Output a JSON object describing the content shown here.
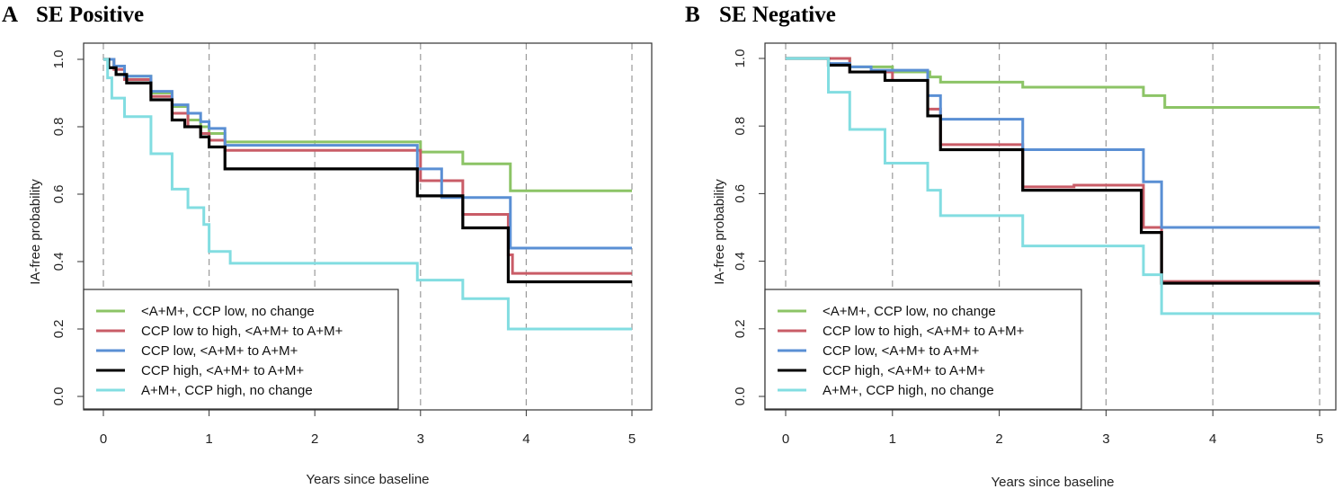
{
  "chart_data": [
    {
      "type": "line",
      "step": true,
      "panel_label": "A",
      "title": "SE Positive",
      "xlabel": "Years since baseline",
      "ylabel": "IA-free probability",
      "xlim": [
        0,
        5
      ],
      "ylim": [
        0,
        1
      ],
      "xticks": [
        "0",
        "1",
        "2",
        "3",
        "4",
        "5"
      ],
      "yticks": [
        "0.0",
        "0.2",
        "0.4",
        "0.6",
        "0.8",
        "1.0"
      ],
      "vlines": [
        0,
        1,
        2,
        3,
        4,
        5
      ],
      "legend_position": "bottom-left",
      "series": [
        {
          "name": "<A+M+, CCP low, no change",
          "color": "#8cc466",
          "x": [
            0,
            0.1,
            0.2,
            0.45,
            0.65,
            0.8,
            0.92,
            1.0,
            1.15,
            3.0,
            3.4,
            3.85,
            5.0
          ],
          "y": [
            1.0,
            0.98,
            0.95,
            0.9,
            0.86,
            0.82,
            0.8,
            0.78,
            0.755,
            0.725,
            0.69,
            0.61,
            0.61
          ]
        },
        {
          "name": "CCP low to high, <A+M+ to A+M+",
          "color": "#c95c67",
          "x": [
            0,
            0.1,
            0.2,
            0.45,
            0.65,
            0.8,
            0.92,
            1.0,
            1.15,
            3.0,
            3.4,
            3.83,
            3.87,
            5.0
          ],
          "y": [
            1.0,
            0.97,
            0.94,
            0.89,
            0.84,
            0.8,
            0.78,
            0.76,
            0.73,
            0.64,
            0.54,
            0.42,
            0.365,
            0.365
          ]
        },
        {
          "name": "CCP low, <A+M+ to A+M+",
          "color": "#5a8fd4",
          "x": [
            0,
            0.1,
            0.2,
            0.45,
            0.65,
            0.8,
            0.92,
            1.0,
            1.15,
            2.97,
            3.2,
            3.85,
            5.0
          ],
          "y": [
            1.0,
            0.98,
            0.95,
            0.905,
            0.865,
            0.84,
            0.815,
            0.795,
            0.745,
            0.675,
            0.59,
            0.44,
            0.44
          ]
        },
        {
          "name": "CCP high, <A+M+ to A+M+",
          "color": "#000000",
          "x": [
            0,
            0.05,
            0.12,
            0.22,
            0.45,
            0.65,
            0.77,
            0.92,
            1.0,
            1.15,
            2.97,
            3.4,
            3.83,
            5.0
          ],
          "y": [
            1.0,
            0.975,
            0.955,
            0.93,
            0.88,
            0.82,
            0.8,
            0.77,
            0.74,
            0.675,
            0.595,
            0.5,
            0.34,
            0.34
          ]
        },
        {
          "name": "A+M+, CCP high, no change",
          "color": "#82dde1",
          "x": [
            0,
            0.04,
            0.08,
            0.2,
            0.45,
            0.65,
            0.8,
            0.95,
            1.0,
            1.2,
            2.97,
            3.4,
            3.83,
            5.0
          ],
          "y": [
            1.0,
            0.945,
            0.885,
            0.83,
            0.72,
            0.615,
            0.56,
            0.51,
            0.43,
            0.395,
            0.345,
            0.29,
            0.2,
            0.2
          ]
        }
      ]
    },
    {
      "type": "line",
      "step": true,
      "panel_label": "B",
      "title": "SE Negative",
      "xlabel": "Years since baseline",
      "ylabel": "IA-free probability",
      "xlim": [
        0,
        5
      ],
      "ylim": [
        0,
        1
      ],
      "xticks": [
        "0",
        "1",
        "2",
        "3",
        "4",
        "5"
      ],
      "yticks": [
        "0.0",
        "0.2",
        "0.4",
        "0.6",
        "0.8",
        "1.0"
      ],
      "vlines": [
        0,
        1,
        2,
        3,
        4,
        5
      ],
      "legend_position": "bottom-left",
      "series": [
        {
          "name": "<A+M+, CCP low, no change",
          "color": "#8cc466",
          "x": [
            0,
            0.6,
            1.0,
            1.35,
            1.45,
            2.22,
            3.35,
            3.55,
            5.0
          ],
          "y": [
            1.0,
            0.975,
            0.96,
            0.945,
            0.93,
            0.915,
            0.89,
            0.855,
            0.855
          ]
        },
        {
          "name": "CCP low to high, <A+M+ to A+M+",
          "color": "#c95c67",
          "x": [
            0,
            0.6,
            1.0,
            1.33,
            1.45,
            2.22,
            2.7,
            3.35,
            3.52,
            5.0
          ],
          "y": [
            1.0,
            0.96,
            0.935,
            0.85,
            0.745,
            0.62,
            0.625,
            0.5,
            0.34,
            0.34
          ]
        },
        {
          "name": "CCP low, <A+M+ to A+M+",
          "color": "#5a8fd4",
          "x": [
            0,
            0.4,
            0.6,
            0.8,
            1.33,
            1.45,
            2.22,
            3.35,
            3.52,
            5.0
          ],
          "y": [
            1.0,
            0.985,
            0.975,
            0.965,
            0.89,
            0.82,
            0.73,
            0.635,
            0.5,
            0.5
          ]
        },
        {
          "name": "CCP high, <A+M+ to A+M+",
          "color": "#000000",
          "x": [
            0,
            0.4,
            0.6,
            0.93,
            1.33,
            1.45,
            2.22,
            3.33,
            3.52,
            5.0
          ],
          "y": [
            1.0,
            0.98,
            0.96,
            0.935,
            0.83,
            0.73,
            0.61,
            0.485,
            0.335,
            0.335
          ]
        },
        {
          "name": "A+M+, CCP high, no change",
          "color": "#82dde1",
          "x": [
            0,
            0.4,
            0.6,
            0.93,
            1.33,
            1.45,
            2.22,
            3.35,
            3.52,
            5.0
          ],
          "y": [
            1.0,
            0.9,
            0.79,
            0.69,
            0.61,
            0.535,
            0.445,
            0.36,
            0.245,
            0.245
          ]
        }
      ]
    }
  ]
}
